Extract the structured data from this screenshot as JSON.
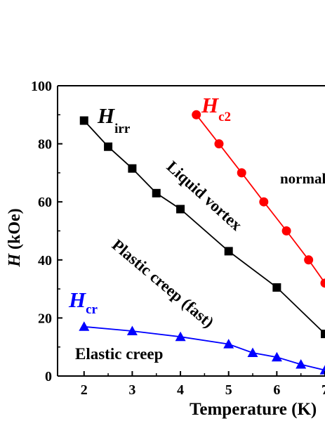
{
  "chart_data": {
    "type": "line",
    "xlabel": "Temperature (K)",
    "ylabel_symbol": "H",
    "ylabel_unit": " (kOe)",
    "xlim": [
      1.45,
      7.0
    ],
    "ylim": [
      0,
      100
    ],
    "xticks": [
      2,
      3,
      4,
      5,
      6,
      7
    ],
    "yticks": [
      0,
      20,
      40,
      60,
      80,
      100
    ],
    "grid": false,
    "series": [
      {
        "name_main": "H",
        "name_sub": "irr",
        "color": "#000000",
        "marker": "square",
        "x": [
          2.0,
          2.5,
          3.0,
          3.5,
          4.0,
          5.0,
          6.0,
          7.0
        ],
        "y": [
          88,
          79,
          71.5,
          63,
          57.5,
          43,
          30.5,
          14.5
        ]
      },
      {
        "name_main": "H",
        "name_sub": "c2",
        "color": "#ff0000",
        "marker": "circle",
        "x": [
          4.33,
          4.8,
          5.27,
          5.73,
          6.2,
          6.66,
          7.0
        ],
        "y": [
          90,
          80,
          70,
          60,
          50,
          40,
          32
        ]
      },
      {
        "name_main": "H",
        "name_sub": "cr",
        "color": "#0000ff",
        "marker": "triangle",
        "x": [
          2.0,
          3.0,
          4.0,
          5.0,
          5.5,
          6.0,
          6.5,
          7.0
        ],
        "y": [
          17,
          15.5,
          13.5,
          11,
          8,
          6.5,
          4,
          2
        ]
      }
    ],
    "annotations": {
      "liquid": "Liquid vortex",
      "plastic": "Plastic creep (fast)",
      "elastic": "Elastic creep",
      "normal": "normal"
    }
  }
}
